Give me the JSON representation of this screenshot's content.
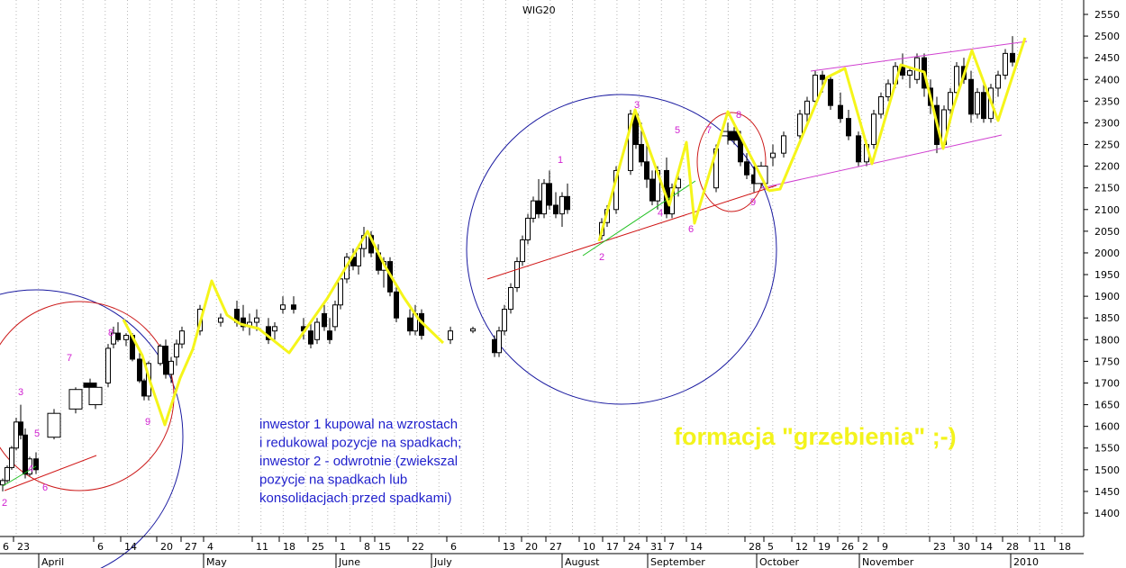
{
  "chart_data": {
    "type": "candlestick",
    "title": "WIG20",
    "ylim": [
      1350,
      2575
    ],
    "y_ticks": [
      1400,
      1450,
      1500,
      1550,
      1600,
      1650,
      1700,
      1750,
      1800,
      1850,
      1900,
      1950,
      2000,
      2050,
      2100,
      2150,
      2200,
      2250,
      2300,
      2350,
      2400,
      2450,
      2500,
      2550
    ],
    "x_day_ticks": [
      "6",
      "23",
      "6",
      "14",
      "20",
      "27",
      "4",
      "11",
      "18",
      "25",
      "1",
      "8",
      "15",
      "22",
      "6",
      "13",
      "20",
      "27",
      "10",
      "17",
      "24",
      "31",
      "7",
      "14",
      "28",
      "5",
      "12",
      "19",
      "26",
      "2",
      "9",
      "23",
      "30",
      "14",
      "28",
      "11",
      "18"
    ],
    "x_months": [
      "April",
      "May",
      "June",
      "July",
      "August",
      "September",
      "October",
      "November",
      "2010"
    ],
    "grid": "vertical dotted",
    "candles": [
      [
        1465,
        1480,
        1450,
        1475
      ],
      [
        1475,
        1510,
        1470,
        1505
      ],
      [
        1505,
        1555,
        1500,
        1550
      ],
      [
        1550,
        1620,
        1545,
        1610
      ],
      [
        1610,
        1650,
        1570,
        1580
      ],
      [
        1580,
        1595,
        1480,
        1490
      ],
      [
        1490,
        1530,
        1485,
        1525
      ],
      [
        1525,
        1540,
        1490,
        1500
      ],
      [
        1575,
        1640,
        1570,
        1630
      ],
      [
        1640,
        1690,
        1630,
        1685
      ],
      [
        1700,
        1710,
        1680,
        1690
      ],
      [
        1650,
        1700,
        1640,
        1690
      ],
      [
        1700,
        1790,
        1690,
        1780
      ],
      [
        1790,
        1830,
        1780,
        1815
      ],
      [
        1815,
        1840,
        1795,
        1800
      ],
      [
        1800,
        1815,
        1785,
        1810
      ],
      [
        1810,
        1815,
        1750,
        1755
      ],
      [
        1755,
        1770,
        1700,
        1705
      ],
      [
        1705,
        1710,
        1660,
        1670
      ],
      [
        1670,
        1750,
        1660,
        1745
      ],
      [
        1745,
        1790,
        1740,
        1785
      ],
      [
        1785,
        1800,
        1710,
        1720
      ],
      [
        1720,
        1760,
        1700,
        1750
      ],
      [
        1760,
        1800,
        1740,
        1790
      ],
      [
        1790,
        1830,
        1780,
        1820
      ],
      [
        1820,
        1880,
        1810,
        1870
      ],
      [
        1840,
        1860,
        1830,
        1850
      ],
      [
        1870,
        1890,
        1830,
        1840
      ],
      [
        1850,
        1880,
        1820,
        1830
      ],
      [
        1830,
        1860,
        1810,
        1840
      ],
      [
        1840,
        1870,
        1820,
        1850
      ],
      [
        1830,
        1850,
        1790,
        1800
      ],
      [
        1820,
        1840,
        1800,
        1830
      ],
      [
        1870,
        1900,
        1860,
        1880
      ],
      [
        1880,
        1900,
        1860,
        1870
      ],
      [
        1830,
        1850,
        1800,
        1820
      ],
      [
        1820,
        1840,
        1780,
        1790
      ],
      [
        1800,
        1850,
        1790,
        1840
      ],
      [
        1860,
        1880,
        1820,
        1830
      ],
      [
        1820,
        1850,
        1790,
        1800
      ],
      [
        1830,
        1890,
        1820,
        1880
      ],
      [
        1880,
        1950,
        1870,
        1940
      ],
      [
        1940,
        2000,
        1930,
        1990
      ],
      [
        1990,
        2010,
        1960,
        1970
      ],
      [
        1970,
        2020,
        1950,
        2010
      ],
      [
        2010,
        2060,
        1990,
        2040
      ],
      [
        2040,
        2050,
        1990,
        2000
      ],
      [
        2000,
        2020,
        1950,
        1960
      ],
      [
        1960,
        1990,
        1920,
        1980
      ],
      [
        1980,
        1990,
        1900,
        1910
      ],
      [
        1910,
        1930,
        1840,
        1850
      ],
      [
        1850,
        1870,
        1810,
        1820
      ],
      [
        1820,
        1880,
        1810,
        1860
      ],
      [
        1860,
        1870,
        1800,
        1810
      ],
      [
        1800,
        1830,
        1790,
        1820
      ],
      [
        1820,
        1830,
        1815,
        1825
      ],
      [
        1800,
        1810,
        1760,
        1770
      ],
      [
        1770,
        1830,
        1760,
        1820
      ],
      [
        1820,
        1880,
        1810,
        1870
      ],
      [
        1870,
        1930,
        1860,
        1920
      ],
      [
        1920,
        1990,
        1910,
        1980
      ],
      [
        1980,
        2040,
        1970,
        2030
      ],
      [
        2030,
        2090,
        2020,
        2080
      ],
      [
        2080,
        2130,
        2070,
        2120
      ],
      [
        2120,
        2170,
        2080,
        2090
      ],
      [
        2090,
        2170,
        2080,
        2160
      ],
      [
        2160,
        2190,
        2100,
        2110
      ],
      [
        2110,
        2140,
        2080,
        2090
      ],
      [
        2090,
        2140,
        2060,
        2130
      ],
      [
        2130,
        2160,
        2090,
        2100
      ],
      [
        2040,
        2080,
        2030,
        2070
      ],
      [
        2070,
        2110,
        2060,
        2100
      ],
      [
        2100,
        2200,
        2090,
        2190
      ],
      [
        2190,
        2330,
        2180,
        2320
      ],
      [
        2320,
        2330,
        2240,
        2250
      ],
      [
        2250,
        2300,
        2200,
        2210
      ],
      [
        2210,
        2260,
        2150,
        2170
      ],
      [
        2170,
        2190,
        2110,
        2120
      ],
      [
        2120,
        2200,
        2100,
        2190
      ],
      [
        2190,
        2220,
        2080,
        2090
      ],
      [
        2090,
        2160,
        2080,
        2150
      ],
      [
        2150,
        2180,
        2130,
        2170
      ],
      [
        2150,
        2250,
        2140,
        2240
      ],
      [
        2270,
        2300,
        2250,
        2280
      ],
      [
        2280,
        2290,
        2250,
        2260
      ],
      [
        2260,
        2270,
        2200,
        2210
      ],
      [
        2210,
        2230,
        2170,
        2180
      ],
      [
        2180,
        2200,
        2140,
        2160
      ],
      [
        2160,
        2210,
        2150,
        2200
      ],
      [
        2220,
        2250,
        2200,
        2230
      ],
      [
        2230,
        2280,
        2220,
        2270
      ],
      [
        2270,
        2330,
        2260,
        2320
      ],
      [
        2320,
        2360,
        2300,
        2350
      ],
      [
        2350,
        2420,
        2340,
        2410
      ],
      [
        2410,
        2420,
        2370,
        2400
      ],
      [
        2400,
        2410,
        2330,
        2340
      ],
      [
        2340,
        2370,
        2300,
        2310
      ],
      [
        2310,
        2330,
        2260,
        2270
      ],
      [
        2270,
        2280,
        2200,
        2210
      ],
      [
        2210,
        2260,
        2200,
        2250
      ],
      [
        2250,
        2330,
        2240,
        2320
      ],
      [
        2320,
        2370,
        2310,
        2360
      ],
      [
        2360,
        2400,
        2350,
        2390
      ],
      [
        2390,
        2440,
        2380,
        2430
      ],
      [
        2430,
        2460,
        2400,
        2410
      ],
      [
        2410,
        2430,
        2380,
        2420
      ],
      [
        2400,
        2460,
        2390,
        2450
      ],
      [
        2450,
        2460,
        2360,
        2380
      ],
      [
        2380,
        2400,
        2320,
        2340
      ],
      [
        2340,
        2360,
        2230,
        2250
      ],
      [
        2250,
        2340,
        2240,
        2330
      ],
      [
        2330,
        2380,
        2320,
        2370
      ],
      [
        2370,
        2440,
        2360,
        2430
      ],
      [
        2430,
        2450,
        2390,
        2400
      ],
      [
        2400,
        2420,
        2300,
        2320
      ],
      [
        2320,
        2380,
        2310,
        2370
      ],
      [
        2370,
        2390,
        2300,
        2310
      ],
      [
        2310,
        2390,
        2300,
        2380
      ],
      [
        2380,
        2420,
        2360,
        2410
      ],
      [
        2410,
        2470,
        2400,
        2460
      ],
      [
        2460,
        2500,
        2430,
        2440
      ]
    ]
  },
  "annotations": {
    "note_lines": [
      "inwestor 1 kupowal na wzrostach",
      "i redukowal pozycje na spadkach;",
      "inwestor 2 - odwrotnie (zwiekszal",
      "pozycje na spadkach lub",
      "konsolidacjach przed spadkami)"
    ],
    "big_label": "formacja \"grzebienia\" ;-)",
    "wave_labels": [
      {
        "t": "2",
        "x": 5,
        "y": 562
      },
      {
        "t": "3",
        "x": 23,
        "y": 439
      },
      {
        "t": "4",
        "x": 34,
        "y": 524
      },
      {
        "t": "5",
        "x": 41,
        "y": 485
      },
      {
        "t": "6",
        "x": 50,
        "y": 545
      },
      {
        "t": "7",
        "x": 77,
        "y": 401
      },
      {
        "t": "8",
        "x": 123,
        "y": 373
      },
      {
        "t": "9",
        "x": 164,
        "y": 472
      },
      {
        "t": "1",
        "x": 622,
        "y": 181
      },
      {
        "t": "2",
        "x": 668,
        "y": 289
      },
      {
        "t": "3",
        "x": 707,
        "y": 120
      },
      {
        "t": "4",
        "x": 733,
        "y": 240
      },
      {
        "t": "5",
        "x": 752,
        "y": 148
      },
      {
        "t": "6",
        "x": 767,
        "y": 258
      },
      {
        "t": "7",
        "x": 787,
        "y": 148
      },
      {
        "t": "8",
        "x": 820,
        "y": 131
      },
      {
        "t": "9",
        "x": 836,
        "y": 228
      }
    ],
    "colors": {
      "zigzag": "#f5f51a",
      "wave_labels": "#d020d0",
      "note": "#1f1fcc",
      "big_label": "#f3f31c",
      "blue_circle": "#1a1aa0",
      "red_circle": "#cc1a1a",
      "trend_red": "#d01515",
      "trend_green": "#20c020",
      "channel": "#d040d0"
    }
  }
}
